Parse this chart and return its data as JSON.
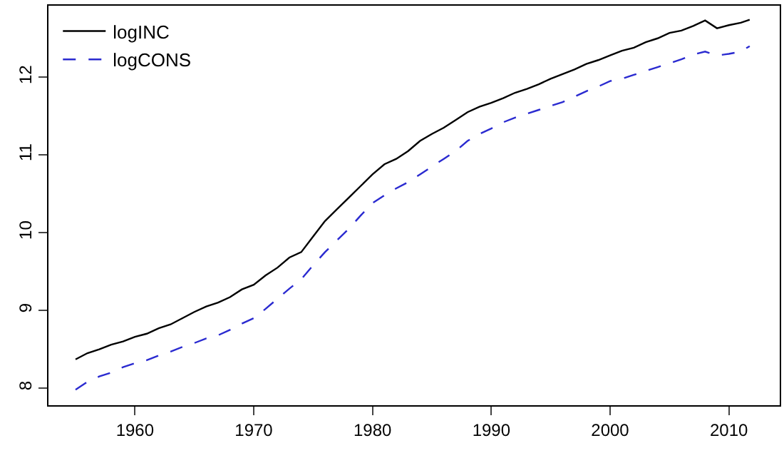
{
  "chart_data": {
    "type": "line",
    "x": [
      1955,
      1956,
      1957,
      1958,
      1959,
      1960,
      1961,
      1962,
      1963,
      1964,
      1965,
      1966,
      1967,
      1968,
      1969,
      1970,
      1971,
      1972,
      1973,
      1974,
      1975,
      1976,
      1977,
      1978,
      1979,
      1980,
      1981,
      1982,
      1983,
      1984,
      1985,
      1986,
      1987,
      1988,
      1989,
      1990,
      1991,
      1992,
      1993,
      1994,
      1995,
      1996,
      1997,
      1998,
      1999,
      2000,
      2001,
      2002,
      2003,
      2004,
      2005,
      2006,
      2007,
      2008,
      2009,
      2010,
      2011,
      2011.75
    ],
    "series": [
      {
        "name": "logINC",
        "color": "#000000",
        "line_style": "solid",
        "values": [
          8.37,
          8.45,
          8.5,
          8.56,
          8.6,
          8.66,
          8.7,
          8.77,
          8.82,
          8.9,
          8.98,
          9.05,
          9.1,
          9.17,
          9.27,
          9.33,
          9.45,
          9.55,
          9.68,
          9.75,
          9.95,
          10.15,
          10.3,
          10.45,
          10.6,
          10.75,
          10.88,
          10.95,
          11.05,
          11.18,
          11.27,
          11.35,
          11.45,
          11.55,
          11.62,
          11.67,
          11.73,
          11.8,
          11.85,
          11.91,
          11.98,
          12.04,
          12.1,
          12.17,
          12.22,
          12.28,
          12.34,
          12.38,
          12.45,
          12.5,
          12.57,
          12.6,
          12.66,
          12.73,
          12.63,
          12.67,
          12.7,
          12.74
        ]
      },
      {
        "name": "logCONS",
        "color": "#2a2ad0",
        "line_style": "dashed",
        "values": [
          7.98,
          8.08,
          8.15,
          8.2,
          8.27,
          8.32,
          8.36,
          8.42,
          8.47,
          8.53,
          8.58,
          8.64,
          8.68,
          8.75,
          8.83,
          8.9,
          9.02,
          9.15,
          9.28,
          9.4,
          9.58,
          9.75,
          9.9,
          10.05,
          10.22,
          10.38,
          10.48,
          10.57,
          10.65,
          10.75,
          10.85,
          10.95,
          11.05,
          11.18,
          11.27,
          11.34,
          11.42,
          11.48,
          11.53,
          11.58,
          11.63,
          11.68,
          11.75,
          11.82,
          11.88,
          11.95,
          11.98,
          12.03,
          12.08,
          12.13,
          12.18,
          12.23,
          12.29,
          12.33,
          12.28,
          12.3,
          12.33,
          12.4
        ]
      }
    ],
    "xlim": [
      1952.72,
      2014.28
    ],
    "xticks": [
      1960,
      1970,
      1980,
      1990,
      2000,
      2010
    ],
    "ylim": [
      7.78,
      12.92
    ],
    "yticks": [
      8,
      9,
      10,
      11,
      12
    ],
    "legend": "top left",
    "marker": "none"
  }
}
